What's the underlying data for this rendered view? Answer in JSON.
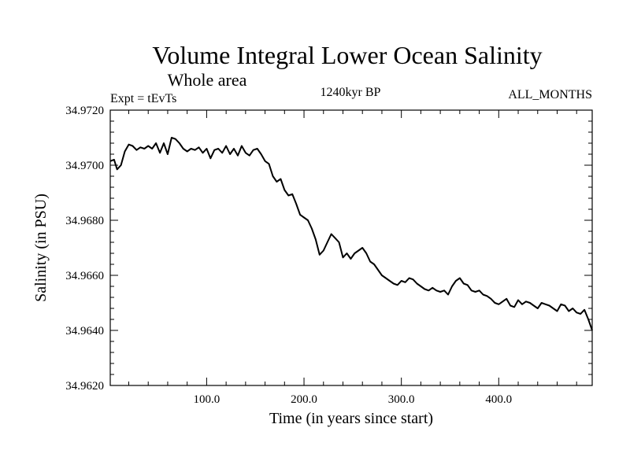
{
  "chart_data": {
    "type": "line",
    "title": "Volume Integral Lower Ocean Salinity",
    "subtitle": "Whole area",
    "annotation_left": "Expt = tEvTs",
    "annotation_center": "1240kyr BP",
    "annotation_right": "ALL_MONTHS",
    "xlabel": "Time (in years since start)",
    "ylabel": "Salinity (in PSU)",
    "xlim": [
      1,
      496
    ],
    "ylim": [
      34.962,
      34.972
    ],
    "xticks": [
      100,
      200,
      300,
      400
    ],
    "xtick_labels": [
      "100.0",
      "200.0",
      "300.0",
      "400.0"
    ],
    "yticks": [
      34.962,
      34.964,
      34.966,
      34.968,
      34.97,
      34.972
    ],
    "ytick_labels": [
      "34.9620",
      "34.9640",
      "34.9660",
      "34.9680",
      "34.9700",
      "34.9720"
    ],
    "series": [
      {
        "name": "salinity",
        "color": "#000000",
        "x": [
          1,
          5,
          8,
          12,
          16,
          20,
          24,
          28,
          32,
          36,
          40,
          44,
          48,
          52,
          56,
          60,
          64,
          68,
          72,
          76,
          80,
          84,
          88,
          92,
          96,
          100,
          104,
          108,
          112,
          116,
          120,
          124,
          128,
          132,
          136,
          140,
          144,
          148,
          152,
          156,
          160,
          164,
          168,
          172,
          176,
          180,
          184,
          188,
          192,
          196,
          200,
          204,
          208,
          212,
          216,
          220,
          224,
          228,
          232,
          236,
          240,
          244,
          248,
          252,
          256,
          260,
          264,
          268,
          272,
          276,
          280,
          284,
          288,
          292,
          296,
          300,
          304,
          308,
          312,
          316,
          320,
          324,
          328,
          332,
          336,
          340,
          344,
          348,
          352,
          356,
          360,
          364,
          368,
          372,
          376,
          380,
          384,
          388,
          392,
          396,
          400,
          404,
          408,
          412,
          416,
          420,
          424,
          428,
          432,
          436,
          440,
          444,
          448,
          452,
          456,
          460,
          464,
          468,
          472,
          476,
          480,
          484,
          488,
          492,
          496
        ],
        "values": [
          34.97015,
          34.9702,
          34.96985,
          34.97,
          34.9705,
          34.97075,
          34.9707,
          34.97055,
          34.97065,
          34.9706,
          34.9707,
          34.9706,
          34.9708,
          34.97045,
          34.9708,
          34.9704,
          34.971,
          34.97095,
          34.9708,
          34.9706,
          34.9705,
          34.9706,
          34.97055,
          34.97065,
          34.97045,
          34.9706,
          34.97025,
          34.97055,
          34.9706,
          34.97045,
          34.9707,
          34.9704,
          34.9706,
          34.97035,
          34.9707,
          34.97045,
          34.97035,
          34.97055,
          34.9706,
          34.9704,
          34.97015,
          34.97005,
          34.9696,
          34.9694,
          34.9695,
          34.9691,
          34.9689,
          34.96895,
          34.9686,
          34.9682,
          34.9681,
          34.968,
          34.9677,
          34.9673,
          34.96675,
          34.9669,
          34.9672,
          34.9675,
          34.96735,
          34.9672,
          34.96665,
          34.9668,
          34.9666,
          34.9668,
          34.9669,
          34.967,
          34.9668,
          34.9665,
          34.9664,
          34.9662,
          34.966,
          34.9659,
          34.9658,
          34.9657,
          34.96565,
          34.9658,
          34.96575,
          34.9659,
          34.96585,
          34.9657,
          34.9656,
          34.9655,
          34.96545,
          34.96555,
          34.96545,
          34.9654,
          34.96545,
          34.9653,
          34.9656,
          34.9658,
          34.9659,
          34.9657,
          34.96565,
          34.96545,
          34.9654,
          34.96545,
          34.9653,
          34.96525,
          34.96515,
          34.965,
          34.96495,
          34.96505,
          34.96515,
          34.9649,
          34.96485,
          34.9651,
          34.96495,
          34.96505,
          34.965,
          34.9649,
          34.9648,
          34.965,
          34.96495,
          34.9649,
          34.9648,
          34.9647,
          34.96495,
          34.9649,
          34.9647,
          34.9648,
          34.96465,
          34.9646,
          34.96475,
          34.9644,
          34.964
        ]
      }
    ]
  }
}
